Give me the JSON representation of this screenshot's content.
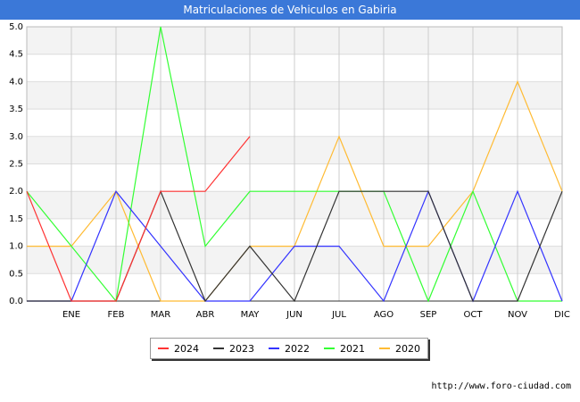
{
  "chart_data": {
    "type": "line",
    "title": "Matriculaciones de Vehiculos en Gabiria",
    "categories": [
      "",
      "ENE",
      "FEB",
      "MAR",
      "ABR",
      "MAY",
      "JUN",
      "JUL",
      "AGO",
      "SEP",
      "OCT",
      "NOV",
      "DIC"
    ],
    "yticks": [
      "0.0",
      "0.5",
      "1.0",
      "1.5",
      "2.0",
      "2.5",
      "3.0",
      "3.5",
      "4.0",
      "4.5",
      "5.0"
    ],
    "ylim": [
      0,
      5
    ],
    "xlabel": "",
    "ylabel": "",
    "series": [
      {
        "name": "2024",
        "color": "#ff3333",
        "values": [
          2,
          0,
          0,
          2,
          2,
          3,
          null,
          null,
          null,
          null,
          null,
          null,
          null
        ]
      },
      {
        "name": "2023",
        "color": "#333333",
        "values": [
          0,
          0,
          0,
          2,
          0,
          1,
          0,
          2,
          2,
          2,
          0,
          0,
          2
        ]
      },
      {
        "name": "2022",
        "color": "#3333ff",
        "values": [
          0,
          0,
          2,
          1,
          0,
          0,
          1,
          1,
          0,
          2,
          0,
          2,
          0
        ]
      },
      {
        "name": "2021",
        "color": "#33ff33",
        "values": [
          2,
          1,
          0,
          5,
          1,
          2,
          2,
          2,
          2,
          0,
          2,
          0,
          0
        ]
      },
      {
        "name": "2020",
        "color": "#ffbb33",
        "values": [
          1,
          1,
          2,
          0,
          0,
          1,
          1,
          3,
          1,
          1,
          2,
          4,
          2
        ]
      }
    ]
  },
  "footer": {
    "url": "http://www.foro-ciudad.com"
  }
}
